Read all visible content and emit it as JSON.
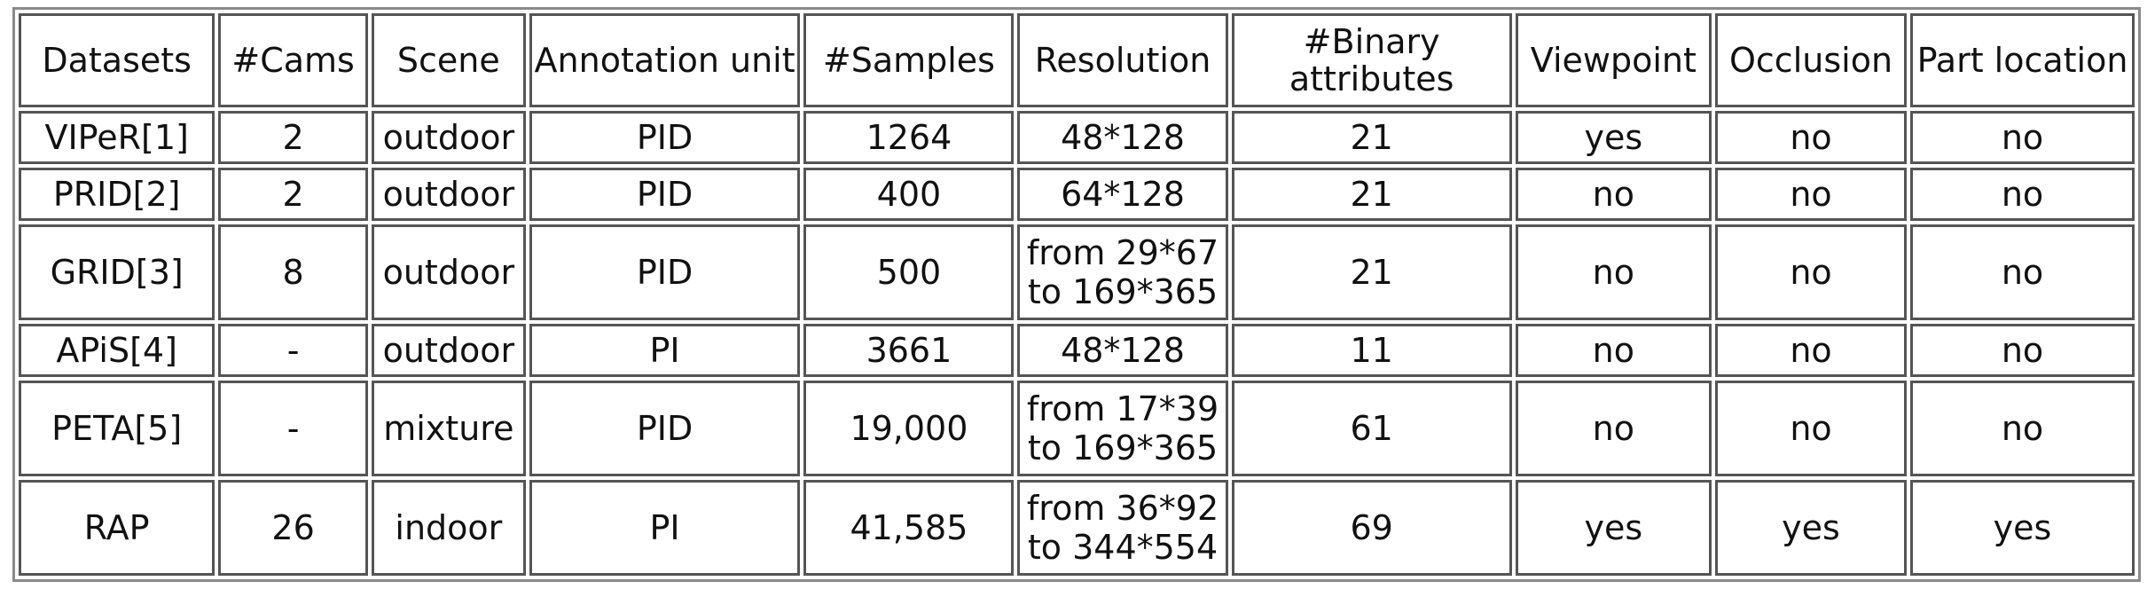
{
  "caption": "",
  "headers": [
    "Datasets",
    "#Cams",
    "Scene",
    "Annotation unit",
    "#Samples",
    "Resolution",
    "#Binary attributes",
    "Viewpoint",
    "Occlusion",
    "Part location"
  ],
  "rows": [
    {
      "dataset": "VIPeR[1]",
      "cams": "2",
      "scene": "outdoor",
      "unit": "PID",
      "samples": "1264",
      "resolution": [
        "48*128"
      ],
      "binary": "21",
      "viewpoint": "yes",
      "occlusion": "no",
      "part": "no"
    },
    {
      "dataset": "PRID[2]",
      "cams": "2",
      "scene": "outdoor",
      "unit": "PID",
      "samples": "400",
      "resolution": [
        "64*128"
      ],
      "binary": "21",
      "viewpoint": "no",
      "occlusion": "no",
      "part": "no"
    },
    {
      "dataset": "GRID[3]",
      "cams": "8",
      "scene": "outdoor",
      "unit": "PID",
      "samples": "500",
      "resolution": [
        "from 29*67",
        "to 169*365"
      ],
      "binary": "21",
      "viewpoint": "no",
      "occlusion": "no",
      "part": "no"
    },
    {
      "dataset": "APiS[4]",
      "cams": "-",
      "scene": "outdoor",
      "unit": "PI",
      "samples": "3661",
      "resolution": [
        "48*128"
      ],
      "binary": "11",
      "viewpoint": "no",
      "occlusion": "no",
      "part": "no"
    },
    {
      "dataset": "PETA[5]",
      "cams": "-",
      "scene": "mixture",
      "unit": "PID",
      "samples": "19,000",
      "resolution": [
        "from 17*39",
        "to 169*365"
      ],
      "binary": "61",
      "viewpoint": "no",
      "occlusion": "no",
      "part": "no"
    },
    {
      "dataset": "RAP",
      "cams": "26",
      "scene": "indoor",
      "unit": "PI",
      "samples": "41,585",
      "resolution": [
        "from 36*92",
        "to 344*554"
      ],
      "binary": "69",
      "viewpoint": "yes",
      "occlusion": "yes",
      "part": "yes"
    }
  ]
}
